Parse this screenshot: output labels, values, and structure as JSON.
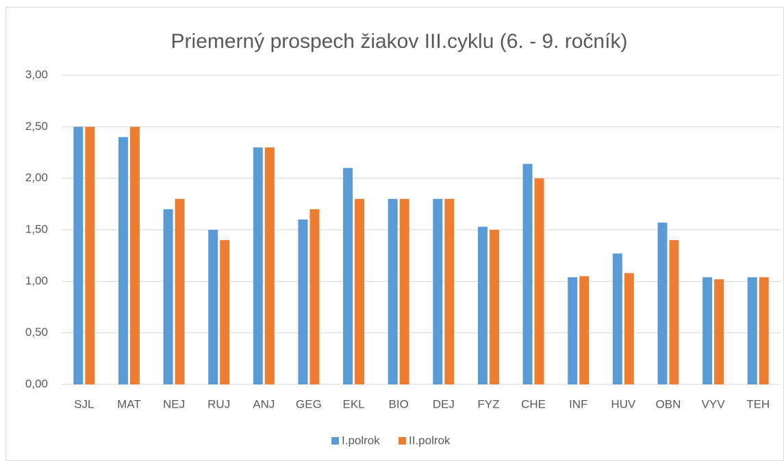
{
  "chart_data": {
    "type": "bar",
    "title": "Priemerný prospech žiakov III.cyklu (6. - 9. ročník)",
    "categories": [
      "SJL",
      "MAT",
      "NEJ",
      "RUJ",
      "ANJ",
      "GEG",
      "EKL",
      "BIO",
      "DEJ",
      "FYZ",
      "CHE",
      "INF",
      "HUV",
      "OBN",
      "VYV",
      "TEH"
    ],
    "series": [
      {
        "name": "I.polrok",
        "color": "#5b9bd5",
        "values": [
          2.5,
          2.4,
          1.7,
          1.5,
          2.3,
          1.6,
          2.1,
          1.8,
          1.8,
          1.53,
          2.14,
          1.04,
          1.27,
          1.57,
          1.04,
          1.04
        ]
      },
      {
        "name": "II.polrok",
        "color": "#ed7d31",
        "values": [
          2.5,
          2.5,
          1.8,
          1.4,
          2.3,
          1.7,
          1.8,
          1.8,
          1.8,
          1.5,
          2.0,
          1.05,
          1.08,
          1.4,
          1.02,
          1.04
        ]
      }
    ],
    "ylim": [
      0,
      3
    ],
    "yticks": [
      {
        "value": 0,
        "label": "0,00"
      },
      {
        "value": 0.5,
        "label": "0,50"
      },
      {
        "value": 1,
        "label": "1,00"
      },
      {
        "value": 1.5,
        "label": "1,50"
      },
      {
        "value": 2,
        "label": "2,00"
      },
      {
        "value": 2.5,
        "label": "2,50"
      },
      {
        "value": 3,
        "label": "3,00"
      }
    ],
    "grid": true,
    "legend": "bottom"
  }
}
